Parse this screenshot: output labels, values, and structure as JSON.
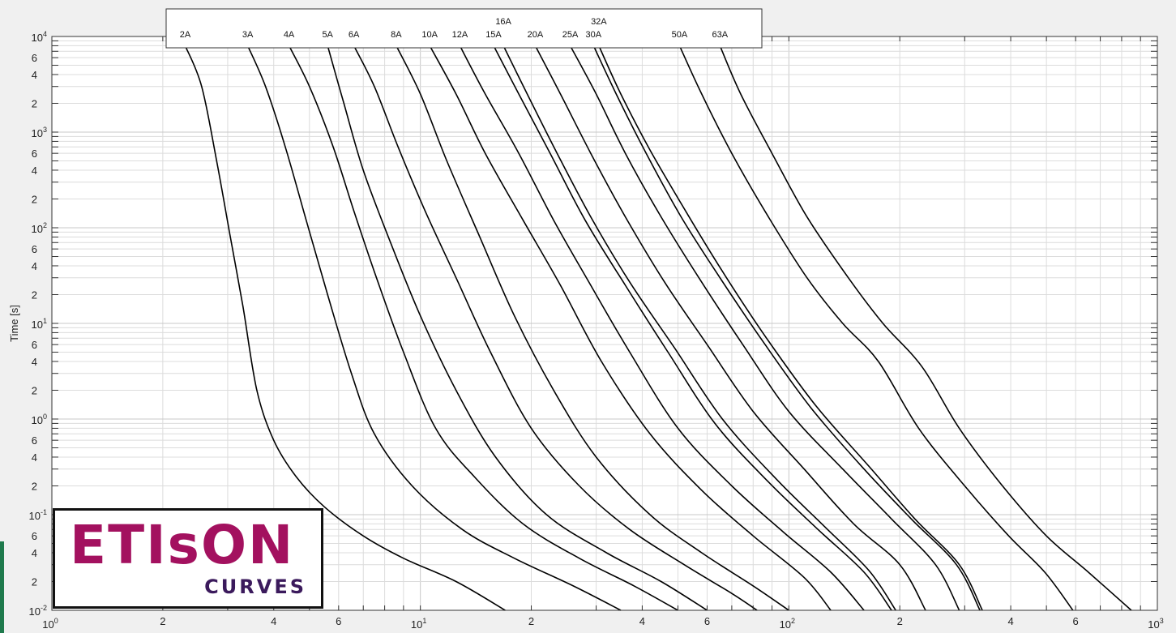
{
  "colors": {
    "background": "#f0f0f0",
    "plot_bg": "#ffffff",
    "curve": "#000000",
    "grid": "#dcdcdc",
    "logo_primary": "#a3115f",
    "logo_secondary": "#3b1a5c",
    "accent": "#1f7a4d"
  },
  "logo": {
    "main": "ETIsON",
    "sub": "CURVES"
  },
  "chart_data": {
    "type": "line",
    "xscale": "log",
    "yscale": "log",
    "xlim": [
      1,
      1000
    ],
    "ylim": [
      0.01,
      10000
    ],
    "grid": true,
    "legend": "top-center",
    "xlabel": "",
    "ylabel": "Time [s]",
    "x_major_ticks": [
      {
        "value": 1,
        "base": "10",
        "exp": "0"
      },
      {
        "value": 10,
        "base": "10",
        "exp": "1"
      },
      {
        "value": 100,
        "base": "10",
        "exp": "2"
      },
      {
        "value": 1000,
        "base": "10",
        "exp": "3"
      }
    ],
    "x_minor_tick_labels": [
      {
        "value": 2,
        "label": "2"
      },
      {
        "value": 4,
        "label": "4"
      },
      {
        "value": 6,
        "label": "6"
      },
      {
        "value": 20,
        "label": "2"
      },
      {
        "value": 40,
        "label": "4"
      },
      {
        "value": 60,
        "label": "6"
      },
      {
        "value": 200,
        "label": "2"
      },
      {
        "value": 400,
        "label": "4"
      },
      {
        "value": 600,
        "label": "6"
      }
    ],
    "y_major_ticks": [
      {
        "value": 0.01,
        "base": "10",
        "exp": "-2"
      },
      {
        "value": 0.1,
        "base": "10",
        "exp": "-1"
      },
      {
        "value": 1,
        "base": "10",
        "exp": "0"
      },
      {
        "value": 10,
        "base": "10",
        "exp": "1"
      },
      {
        "value": 100,
        "base": "10",
        "exp": "2"
      },
      {
        "value": 1000,
        "base": "10",
        "exp": "3"
      },
      {
        "value": 10000,
        "base": "10",
        "exp": "4"
      }
    ],
    "y_minor_tick_labels": [
      {
        "value": 0.02,
        "label": "2"
      },
      {
        "value": 0.04,
        "label": "4"
      },
      {
        "value": 0.06,
        "label": "6"
      },
      {
        "value": 0.2,
        "label": "2"
      },
      {
        "value": 0.4,
        "label": "4"
      },
      {
        "value": 0.6,
        "label": "6"
      },
      {
        "value": 2,
        "label": "2"
      },
      {
        "value": 4,
        "label": "4"
      },
      {
        "value": 6,
        "label": "6"
      },
      {
        "value": 20,
        "label": "2"
      },
      {
        "value": 40,
        "label": "4"
      },
      {
        "value": 60,
        "label": "6"
      },
      {
        "value": 200,
        "label": "2"
      },
      {
        "value": 400,
        "label": "4"
      },
      {
        "value": 600,
        "label": "6"
      },
      {
        "value": 2000,
        "label": "2"
      },
      {
        "value": 4000,
        "label": "4"
      },
      {
        "value": 6000,
        "label": "6"
      }
    ],
    "series": [
      {
        "name": "2A",
        "points": [
          [
            2.3,
            8000
          ],
          [
            2.55,
            3000
          ],
          [
            2.8,
            500
          ],
          [
            3.05,
            80
          ],
          [
            3.3,
            15
          ],
          [
            3.6,
            2
          ],
          [
            4.0,
            0.6
          ],
          [
            4.6,
            0.25
          ],
          [
            5.5,
            0.12
          ],
          [
            7,
            0.06
          ],
          [
            9,
            0.035
          ],
          [
            12.5,
            0.02
          ],
          [
            17,
            0.01
          ]
        ]
      },
      {
        "name": "3A",
        "points": [
          [
            3.4,
            8000
          ],
          [
            3.8,
            3000
          ],
          [
            4.3,
            700
          ],
          [
            4.9,
            120
          ],
          [
            5.6,
            20
          ],
          [
            6.5,
            3
          ],
          [
            7.5,
            0.7
          ],
          [
            9.5,
            0.2
          ],
          [
            13,
            0.07
          ],
          [
            18,
            0.035
          ],
          [
            26,
            0.018
          ],
          [
            35,
            0.01
          ]
        ]
      },
      {
        "name": "4A",
        "points": [
          [
            4.4,
            8000
          ],
          [
            5.0,
            3000
          ],
          [
            5.8,
            700
          ],
          [
            6.6,
            150
          ],
          [
            7.6,
            30
          ],
          [
            9,
            5
          ],
          [
            11,
            0.8
          ],
          [
            14,
            0.25
          ],
          [
            19,
            0.08
          ],
          [
            27,
            0.035
          ],
          [
            38,
            0.018
          ],
          [
            50,
            0.01
          ]
        ]
      },
      {
        "name": "5A",
        "points": [
          [
            5.6,
            8000
          ],
          [
            6.2,
            2000
          ],
          [
            7.0,
            400
          ],
          [
            8.3,
            70
          ],
          [
            10,
            12
          ],
          [
            12.5,
            2
          ],
          [
            16,
            0.4
          ],
          [
            22,
            0.1
          ],
          [
            32,
            0.04
          ],
          [
            45,
            0.02
          ],
          [
            60,
            0.01
          ]
        ]
      },
      {
        "name": "6A",
        "points": [
          [
            6.6,
            8000
          ],
          [
            7.5,
            3000
          ],
          [
            8.7,
            700
          ],
          [
            10.3,
            150
          ],
          [
            12.5,
            30
          ],
          [
            15.5,
            5
          ],
          [
            20,
            0.8
          ],
          [
            27,
            0.2
          ],
          [
            37,
            0.07
          ],
          [
            52,
            0.03
          ],
          [
            70,
            0.015
          ],
          [
            82,
            0.01
          ]
        ]
      },
      {
        "name": "8A",
        "points": [
          [
            8.6,
            8000
          ],
          [
            10,
            2500
          ],
          [
            11.8,
            500
          ],
          [
            14.5,
            80
          ],
          [
            18,
            12
          ],
          [
            23,
            2
          ],
          [
            30,
            0.4
          ],
          [
            42,
            0.1
          ],
          [
            58,
            0.04
          ],
          [
            80,
            0.018
          ],
          [
            100,
            0.01
          ]
        ]
      },
      {
        "name": "10A",
        "points": [
          [
            10.6,
            8000
          ],
          [
            12.5,
            2500
          ],
          [
            15,
            600
          ],
          [
            19,
            120
          ],
          [
            24,
            25
          ],
          [
            31,
            4
          ],
          [
            42,
            0.7
          ],
          [
            58,
            0.18
          ],
          [
            80,
            0.06
          ],
          [
            110,
            0.022
          ],
          [
            130,
            0.01
          ]
        ]
      },
      {
        "name": "12A",
        "points": [
          [
            12.8,
            8000
          ],
          [
            15,
            2500
          ],
          [
            18.5,
            600
          ],
          [
            23,
            120
          ],
          [
            29,
            25
          ],
          [
            37,
            5
          ],
          [
            50,
            0.8
          ],
          [
            70,
            0.2
          ],
          [
            97,
            0.065
          ],
          [
            130,
            0.025
          ],
          [
            160,
            0.01
          ]
        ]
      },
      {
        "name": "15A",
        "points": [
          [
            15.8,
            8000
          ],
          [
            18.5,
            2500
          ],
          [
            22.5,
            600
          ],
          [
            28,
            120
          ],
          [
            36,
            25
          ],
          [
            47,
            5
          ],
          [
            63,
            0.9
          ],
          [
            88,
            0.22
          ],
          [
            120,
            0.07
          ],
          [
            160,
            0.025
          ],
          [
            190,
            0.01
          ]
        ]
      },
      {
        "name": "16A",
        "points": [
          [
            16.8,
            8000
          ],
          [
            19.5,
            2500
          ],
          [
            23.5,
            600
          ],
          [
            29,
            130
          ],
          [
            37,
            27
          ],
          [
            49,
            5.5
          ],
          [
            66,
            1
          ],
          [
            92,
            0.24
          ],
          [
            125,
            0.075
          ],
          [
            165,
            0.026
          ],
          [
            195,
            0.01
          ]
        ]
      },
      {
        "name": "20A",
        "points": [
          [
            20.5,
            8000
          ],
          [
            24,
            2500
          ],
          [
            29,
            600
          ],
          [
            36,
            130
          ],
          [
            46,
            27
          ],
          [
            60,
            6
          ],
          [
            80,
            1.2
          ],
          [
            110,
            0.3
          ],
          [
            150,
            0.08
          ],
          [
            200,
            0.03
          ],
          [
            235,
            0.01
          ]
        ]
      },
      {
        "name": "25A",
        "points": [
          [
            25.5,
            8000
          ],
          [
            30,
            2500
          ],
          [
            36,
            600
          ],
          [
            45,
            130
          ],
          [
            57,
            30
          ],
          [
            75,
            6
          ],
          [
            100,
            1.2
          ],
          [
            140,
            0.3
          ],
          [
            190,
            0.09
          ],
          [
            250,
            0.03
          ],
          [
            290,
            0.01
          ]
        ]
      },
      {
        "name": "30A",
        "points": [
          [
            29.5,
            8000
          ],
          [
            34,
            2500
          ],
          [
            41,
            600
          ],
          [
            51,
            130
          ],
          [
            65,
            30
          ],
          [
            85,
            6.5
          ],
          [
            115,
            1.3
          ],
          [
            160,
            0.3
          ],
          [
            215,
            0.09
          ],
          [
            285,
            0.03
          ],
          [
            330,
            0.01
          ]
        ]
      },
      {
        "name": "32A",
        "points": [
          [
            30.5,
            8000
          ],
          [
            35,
            2500
          ],
          [
            42,
            650
          ],
          [
            53,
            140
          ],
          [
            67,
            32
          ],
          [
            87,
            7
          ],
          [
            118,
            1.4
          ],
          [
            165,
            0.32
          ],
          [
            220,
            0.09
          ],
          [
            290,
            0.03
          ],
          [
            335,
            0.01
          ]
        ]
      },
      {
        "name": "50A",
        "points": [
          [
            50.5,
            8000
          ],
          [
            58,
            2500
          ],
          [
            70,
            600
          ],
          [
            88,
            130
          ],
          [
            112,
            30
          ],
          [
            140,
            10
          ],
          [
            175,
            4
          ],
          [
            225,
            0.8
          ],
          [
            300,
            0.2
          ],
          [
            395,
            0.06
          ],
          [
            495,
            0.025
          ],
          [
            590,
            0.01
          ]
        ]
      },
      {
        "name": "63A",
        "points": [
          [
            65,
            8000
          ],
          [
            74,
            2500
          ],
          [
            90,
            600
          ],
          [
            112,
            130
          ],
          [
            145,
            30
          ],
          [
            180,
            10
          ],
          [
            230,
            3.5
          ],
          [
            290,
            0.8
          ],
          [
            380,
            0.2
          ],
          [
            500,
            0.06
          ],
          [
            650,
            0.025
          ],
          [
            850,
            0.01
          ]
        ]
      }
    ]
  }
}
